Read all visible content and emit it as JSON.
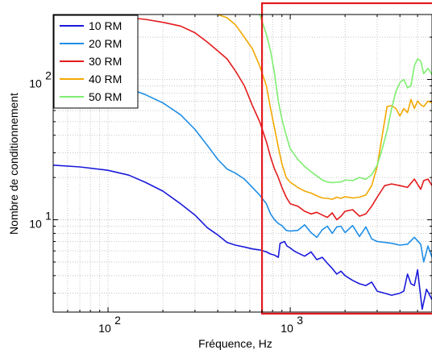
{
  "chart_data": {
    "type": "line",
    "title": "",
    "xlabel": "Fréquence, Hz",
    "ylabel": "Nombre de conditionnement",
    "xscale": "log",
    "yscale": "log",
    "xlim": [
      50,
      6000
    ],
    "ylim": [
      2.2,
      290
    ],
    "x_ticks": [
      {
        "value": 100,
        "base": "10",
        "exp": "2"
      },
      {
        "value": 1000,
        "base": "10",
        "exp": "3"
      }
    ],
    "y_ticks": [
      {
        "value": 10,
        "base": "10",
        "exp": "1"
      },
      {
        "value": 100,
        "base": "10",
        "exp": "2"
      }
    ],
    "grid": "dotted",
    "legend_position": "top-left",
    "highlight_box": {
      "x_from": 700,
      "color": "#e31a1c"
    },
    "series": [
      {
        "name": "10 RM",
        "color": "#1a1adb",
        "points": [
          [
            50,
            24.5
          ],
          [
            70,
            23.8
          ],
          [
            100,
            22.5
          ],
          [
            130,
            20.8
          ],
          [
            160,
            18.5
          ],
          [
            200,
            16
          ],
          [
            250,
            13
          ],
          [
            300,
            10.8
          ],
          [
            350,
            8.8
          ],
          [
            400,
            7.8
          ],
          [
            450,
            6.9
          ],
          [
            500,
            6.6
          ],
          [
            560,
            6.4
          ],
          [
            620,
            6.2
          ],
          [
            680,
            6.1
          ],
          [
            740,
            5.9
          ],
          [
            780,
            5.7
          ],
          [
            820,
            5.6
          ],
          [
            860,
            5.4
          ],
          [
            880,
            6.8
          ],
          [
            930,
            7
          ],
          [
            960,
            6.5
          ],
          [
            1000,
            6.3
          ],
          [
            1050,
            6.0
          ],
          [
            1100,
            5.8
          ],
          [
            1200,
            5.5
          ],
          [
            1300,
            5.9
          ],
          [
            1400,
            5.2
          ],
          [
            1500,
            5.4
          ],
          [
            1600,
            4.9
          ],
          [
            1700,
            4.5
          ],
          [
            1800,
            4.1
          ],
          [
            1900,
            4.3
          ],
          [
            2000,
            4.0
          ],
          [
            2200,
            3.7
          ],
          [
            2400,
            3.5
          ],
          [
            2600,
            3.4
          ],
          [
            2800,
            3.6
          ],
          [
            3000,
            3.1
          ],
          [
            3300,
            3.0
          ],
          [
            3600,
            2.9
          ],
          [
            4000,
            3.0
          ],
          [
            4200,
            3.1
          ],
          [
            4400,
            4.1
          ],
          [
            4600,
            3.5
          ],
          [
            4800,
            3.4
          ],
          [
            5000,
            4.4
          ],
          [
            5300,
            2.3
          ],
          [
            5600,
            3.2
          ],
          [
            6000,
            2.7
          ]
        ]
      },
      {
        "name": "20 RM",
        "color": "#1f8ee6",
        "points": [
          [
            50,
            100
          ],
          [
            70,
            98
          ],
          [
            100,
            93
          ],
          [
            130,
            86
          ],
          [
            160,
            78
          ],
          [
            200,
            68
          ],
          [
            250,
            56
          ],
          [
            300,
            44
          ],
          [
            350,
            34
          ],
          [
            400,
            27
          ],
          [
            450,
            23
          ],
          [
            500,
            21.5
          ],
          [
            560,
            19.5
          ],
          [
            620,
            17
          ],
          [
            680,
            15
          ],
          [
            740,
            13
          ],
          [
            780,
            11
          ],
          [
            820,
            10
          ],
          [
            860,
            9.4
          ],
          [
            900,
            9.1
          ],
          [
            950,
            8.4
          ],
          [
            1000,
            8.3
          ],
          [
            1100,
            8.4
          ],
          [
            1200,
            9.2
          ],
          [
            1300,
            8.1
          ],
          [
            1400,
            7.5
          ],
          [
            1500,
            8.5
          ],
          [
            1600,
            9.0
          ],
          [
            1700,
            8.0
          ],
          [
            1800,
            8.9
          ],
          [
            1900,
            9.0
          ],
          [
            2000,
            8.1
          ],
          [
            2200,
            9.1
          ],
          [
            2400,
            7.6
          ],
          [
            2600,
            8.9
          ],
          [
            2800,
            7.3
          ],
          [
            3000,
            7.0
          ],
          [
            3300,
            6.9
          ],
          [
            3600,
            6.8
          ],
          [
            4000,
            6.6
          ],
          [
            4400,
            6.7
          ],
          [
            4800,
            7.5
          ],
          [
            5200,
            6.7
          ],
          [
            5400,
            5.0
          ],
          [
            5700,
            6.5
          ],
          [
            6000,
            5.4
          ]
        ]
      },
      {
        "name": "30 RM",
        "color": "#e31a1c",
        "points": [
          [
            50,
            290
          ],
          [
            70,
            285
          ],
          [
            100,
            282
          ],
          [
            130,
            275
          ],
          [
            160,
            268
          ],
          [
            200,
            255
          ],
          [
            250,
            240
          ],
          [
            300,
            215
          ],
          [
            350,
            185
          ],
          [
            400,
            160
          ],
          [
            450,
            140
          ],
          [
            500,
            115
          ],
          [
            560,
            90
          ],
          [
            620,
            65
          ],
          [
            680,
            50
          ],
          [
            740,
            36
          ],
          [
            780,
            28
          ],
          [
            820,
            23
          ],
          [
            860,
            20
          ],
          [
            900,
            17
          ],
          [
            950,
            14.5
          ],
          [
            1000,
            13
          ],
          [
            1100,
            12.5
          ],
          [
            1200,
            11.5
          ],
          [
            1300,
            11.0
          ],
          [
            1400,
            11.3
          ],
          [
            1500,
            10.8
          ],
          [
            1600,
            10.4
          ],
          [
            1700,
            11.2
          ],
          [
            1800,
            10.0
          ],
          [
            1900,
            10.6
          ],
          [
            2000,
            11.5
          ],
          [
            2200,
            11.8
          ],
          [
            2400,
            10.6
          ],
          [
            2600,
            11.0
          ],
          [
            2800,
            12.5
          ],
          [
            3000,
            14.5
          ],
          [
            3300,
            17.5
          ],
          [
            3600,
            18
          ],
          [
            4000,
            17.5
          ],
          [
            4400,
            17
          ],
          [
            4800,
            19.5
          ],
          [
            5200,
            16.5
          ],
          [
            5400,
            19.0
          ],
          [
            5700,
            19.5
          ],
          [
            6000,
            17.5
          ]
        ]
      },
      {
        "name": "40 RM",
        "color": "#f2a800",
        "points": [
          [
            400,
            290
          ],
          [
            450,
            275
          ],
          [
            500,
            245
          ],
          [
            560,
            200
          ],
          [
            620,
            165
          ],
          [
            680,
            125
          ],
          [
            740,
            90
          ],
          [
            780,
            62
          ],
          [
            820,
            45
          ],
          [
            860,
            33
          ],
          [
            900,
            25
          ],
          [
            950,
            20
          ],
          [
            1000,
            18.5
          ],
          [
            1100,
            17
          ],
          [
            1200,
            16
          ],
          [
            1300,
            15.5
          ],
          [
            1400,
            14.8
          ],
          [
            1500,
            14.3
          ],
          [
            1600,
            14.2
          ],
          [
            1700,
            14.0
          ],
          [
            1800,
            14.5
          ],
          [
            1900,
            14.2
          ],
          [
            2000,
            14.6
          ],
          [
            2200,
            14.3
          ],
          [
            2400,
            14.5
          ],
          [
            2600,
            15.0
          ],
          [
            2800,
            17.5
          ],
          [
            3000,
            24
          ],
          [
            3200,
            40
          ],
          [
            3400,
            64
          ],
          [
            3600,
            65
          ],
          [
            3800,
            62
          ],
          [
            4000,
            55
          ],
          [
            4200,
            62
          ],
          [
            4400,
            58
          ],
          [
            4600,
            72
          ],
          [
            4800,
            62
          ],
          [
            5000,
            70
          ],
          [
            5200,
            66
          ],
          [
            5400,
            64
          ],
          [
            5700,
            70
          ],
          [
            6000,
            68
          ]
        ]
      },
      {
        "name": "50 RM",
        "color": "#7fee70",
        "points": [
          [
            680,
            290
          ],
          [
            740,
            210
          ],
          [
            780,
            160
          ],
          [
            820,
            110
          ],
          [
            860,
            70
          ],
          [
            900,
            52
          ],
          [
            950,
            40
          ],
          [
            1000,
            32
          ],
          [
            1100,
            27
          ],
          [
            1200,
            24
          ],
          [
            1300,
            22
          ],
          [
            1400,
            20.5
          ],
          [
            1500,
            19.2
          ],
          [
            1600,
            18.6
          ],
          [
            1700,
            18.4
          ],
          [
            1800,
            18.5
          ],
          [
            1900,
            18.6
          ],
          [
            2000,
            19.2
          ],
          [
            2200,
            19.0
          ],
          [
            2400,
            20
          ],
          [
            2600,
            19.4
          ],
          [
            2800,
            21
          ],
          [
            3000,
            24.5
          ],
          [
            3200,
            32
          ],
          [
            3400,
            43
          ],
          [
            3600,
            62
          ],
          [
            3800,
            82
          ],
          [
            4000,
            95
          ],
          [
            4200,
            100
          ],
          [
            4400,
            87
          ],
          [
            4600,
            90
          ],
          [
            4800,
            125
          ],
          [
            5000,
            140
          ],
          [
            5200,
            135
          ],
          [
            5400,
            110
          ],
          [
            5700,
            120
          ],
          [
            6000,
            108
          ]
        ]
      }
    ]
  }
}
